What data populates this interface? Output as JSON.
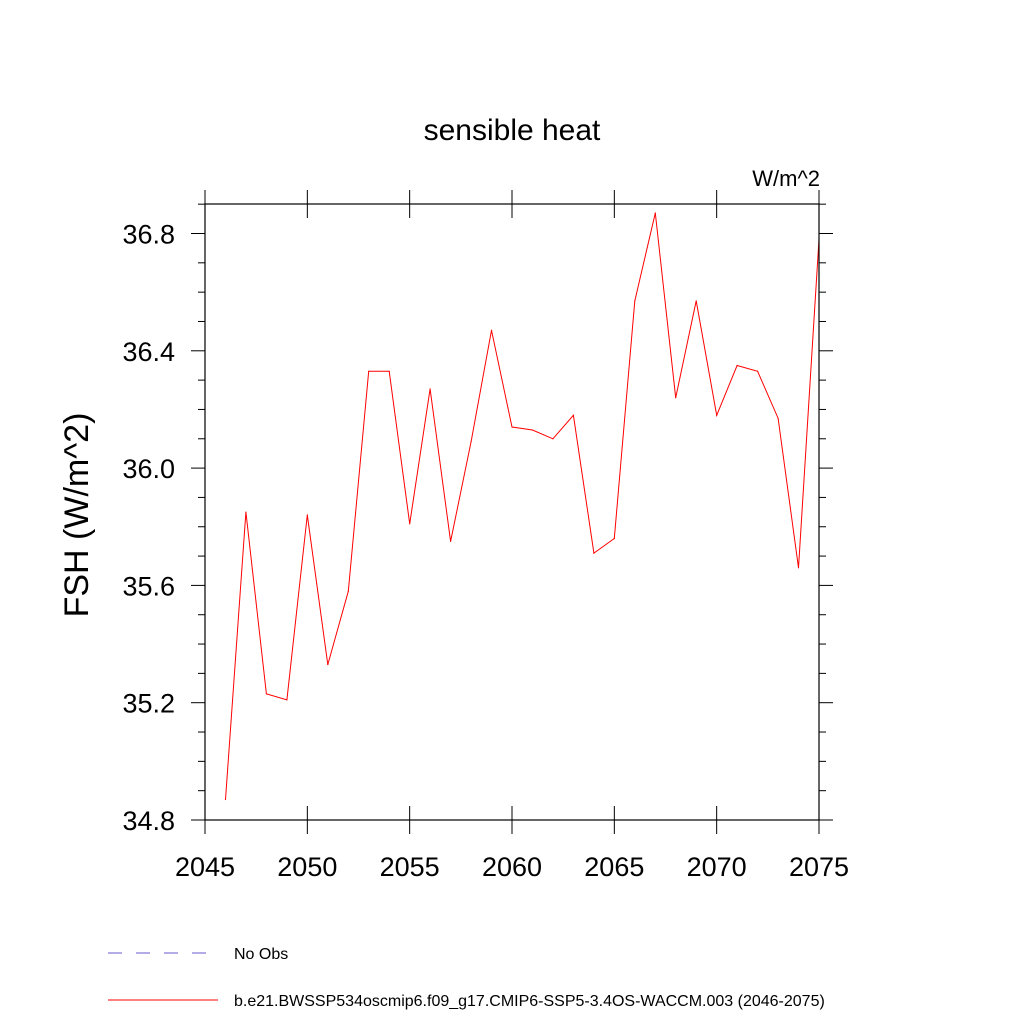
{
  "chart_data": {
    "type": "line",
    "title": "sensible heat",
    "units_label": "W/m^2",
    "ylabel": "FSH  (W/m^2)",
    "xlabel": "",
    "xlim": [
      2045,
      2075
    ],
    "ylim": [
      34.8,
      36.9
    ],
    "x_ticks": [
      2045,
      2050,
      2055,
      2060,
      2065,
      2070,
      2075
    ],
    "x_tick_labels": [
      "2045",
      "2050",
      "2055",
      "2060",
      "2065",
      "2070",
      "2075"
    ],
    "y_ticks": [
      34.8,
      35.2,
      35.6,
      36.0,
      36.4,
      36.8
    ],
    "y_tick_labels": [
      "34.8",
      "35.2",
      "35.6",
      "36.0",
      "36.4",
      "36.8"
    ],
    "grid": false,
    "legend_position": "bottom-left, below plot",
    "series": [
      {
        "name": "b.e21.BWSSP534oscmip6.f09_g17.CMIP6-SSP5-3.4OS-WACCM.003 (2046-2075)",
        "color": "#ff0000",
        "x": [
          2046,
          2047,
          2048,
          2049,
          2050,
          2051,
          2052,
          2053,
          2054,
          2055,
          2056,
          2057,
          2058,
          2059,
          2060,
          2061,
          2062,
          2063,
          2064,
          2065,
          2066,
          2067,
          2068,
          2069,
          2070,
          2071,
          2072,
          2073,
          2074,
          2075
        ],
        "values": [
          34.87,
          35.85,
          35.23,
          35.21,
          35.84,
          35.33,
          35.58,
          36.33,
          36.33,
          35.81,
          36.27,
          35.75,
          36.09,
          36.47,
          36.14,
          36.13,
          36.1,
          36.18,
          35.71,
          35.76,
          36.57,
          36.87,
          36.24,
          36.57,
          36.18,
          36.35,
          36.33,
          36.17,
          35.66,
          36.78
        ]
      }
    ],
    "legend": [
      {
        "label": "No Obs",
        "color": "#6a5acd",
        "style": "dashed"
      },
      {
        "label": "b.e21.BWSSP534oscmip6.f09_g17.CMIP6-SSP5-3.4OS-WACCM.003 (2046-2075)",
        "color": "#ff0000",
        "style": "solid"
      }
    ]
  }
}
